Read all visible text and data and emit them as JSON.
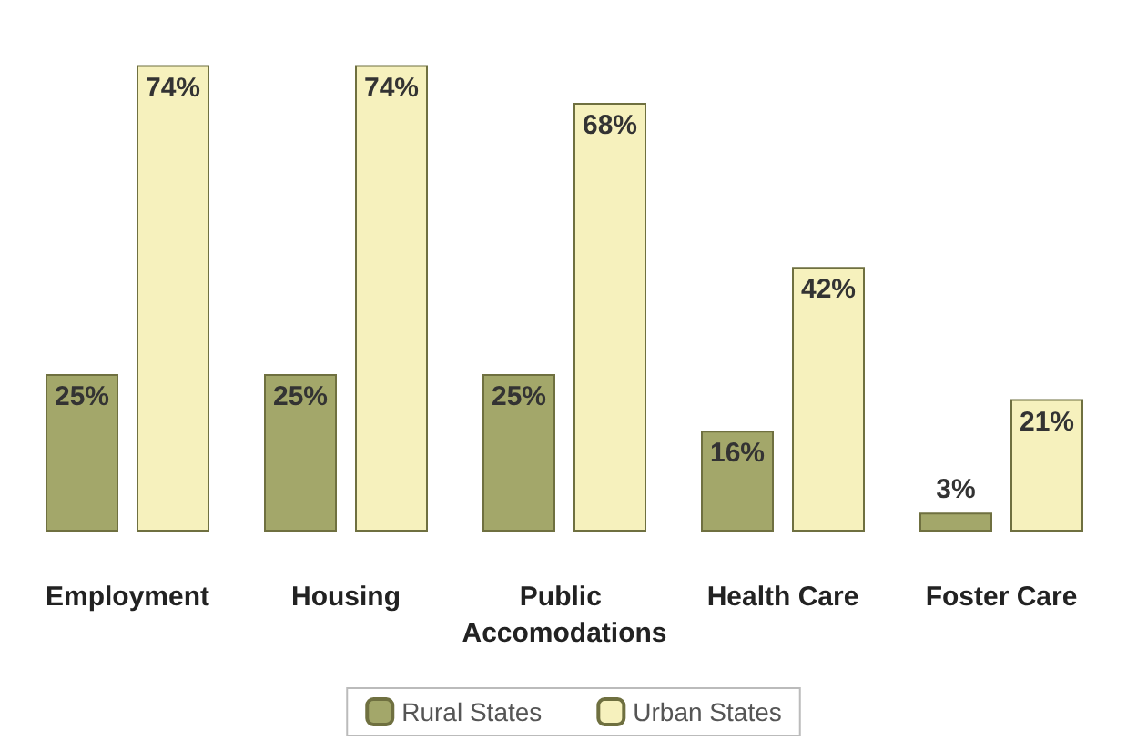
{
  "chart_data": {
    "type": "bar",
    "categories": [
      "Employment",
      "Housing",
      "Public Accomodations",
      "Health Care",
      "Foster Care"
    ],
    "series": [
      {
        "name": "Rural States",
        "color": "#a3a76a",
        "values": [
          25,
          25,
          25,
          16,
          3
        ],
        "value_labels": [
          "25%",
          "25%",
          "25%",
          "16%",
          "3%"
        ]
      },
      {
        "name": "Urban States",
        "color": "#f6f1bd",
        "values": [
          74,
          74,
          68,
          42,
          21
        ],
        "value_labels": [
          "74%",
          "74%",
          "68%",
          "42%",
          "21%"
        ]
      }
    ],
    "legend": "bottom",
    "grid": false
  }
}
